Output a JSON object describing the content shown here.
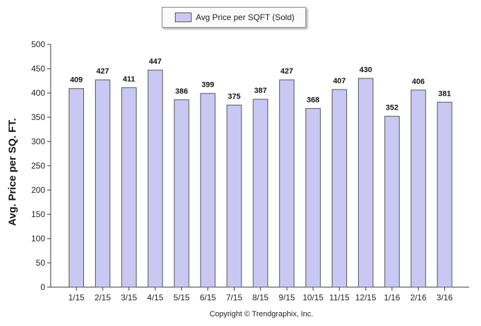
{
  "chart_data": {
    "type": "bar",
    "title": "",
    "xlabel": "",
    "ylabel": "Avg. Price per SQ. FT.",
    "legend": {
      "label": "Avg Price per SQFT (Sold)",
      "placement": "top-center"
    },
    "categories": [
      "1/15",
      "2/15",
      "3/15",
      "4/15",
      "5/15",
      "6/15",
      "7/15",
      "8/15",
      "9/15",
      "10/15",
      "11/15",
      "12/15",
      "1/16",
      "2/16",
      "3/16"
    ],
    "series": [
      {
        "name": "Avg Price per SQFT (Sold)",
        "values": [
          409,
          427,
          411,
          447,
          386,
          399,
          375,
          387,
          427,
          368,
          407,
          430,
          352,
          406,
          381
        ]
      }
    ],
    "ylim": [
      0,
      500
    ],
    "yticks": [
      0,
      50,
      100,
      150,
      200,
      250,
      300,
      350,
      400,
      450,
      500
    ],
    "grid": false,
    "data_labels": true
  },
  "footer": {
    "copyright": "Copyright © Trendgraphix, Inc."
  },
  "colors": {
    "bar_fill": "#c8c8f2",
    "bar_stroke": "#555555",
    "axis": "#333333"
  }
}
